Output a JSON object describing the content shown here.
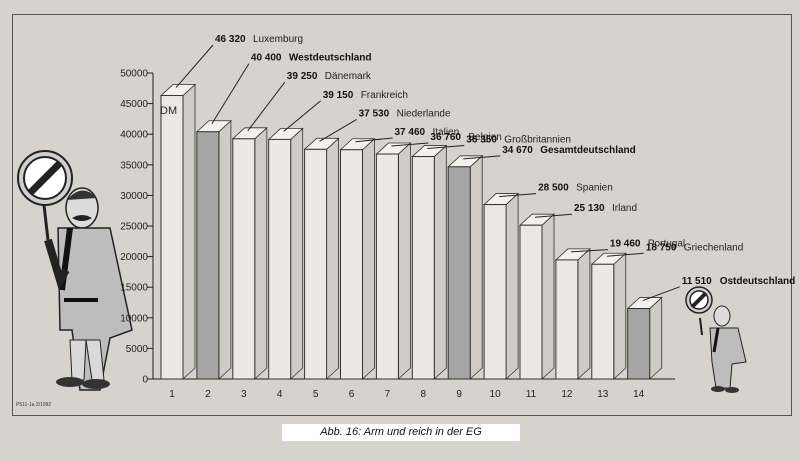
{
  "caption": "Abb. 16: Arm und reich in der EG",
  "footnote": "P511-1a 2/1992",
  "chart_data": {
    "type": "bar",
    "unit_label": "DM",
    "categories": [
      "1",
      "2",
      "3",
      "4",
      "5",
      "6",
      "7",
      "8",
      "9",
      "10",
      "11",
      "12",
      "13",
      "14"
    ],
    "values": [
      46320,
      40400,
      39250,
      39150,
      37530,
      37460,
      36760,
      36350,
      34670,
      28500,
      25130,
      19460,
      18750,
      11510
    ],
    "value_labels": [
      "46 320",
      "40 400",
      "39 250",
      "39 150",
      "37 530",
      "37 460",
      "36 760",
      "36 350",
      "34 670",
      "28 500",
      "25 130",
      "19 460",
      "18 750",
      "11 510"
    ],
    "countries": [
      "Luxemburg",
      "Westdeutschland",
      "Dänemark",
      "Frankreich",
      "Niederlande",
      "Italien",
      "Belgien",
      "Großbritannien",
      "Gesamtdeutschland",
      "Spanien",
      "Irland",
      "Portugal",
      "Griechenland",
      "Ostdeutschland"
    ],
    "bold_labels": [
      false,
      true,
      false,
      false,
      false,
      false,
      false,
      false,
      true,
      false,
      false,
      false,
      false,
      true
    ],
    "highlighted": [
      false,
      true,
      false,
      false,
      false,
      false,
      false,
      false,
      true,
      false,
      false,
      false,
      false,
      true
    ],
    "yticks": [
      0,
      5000,
      10000,
      15000,
      20000,
      25000,
      30000,
      35000,
      40000,
      45000,
      50000
    ],
    "ylim": [
      0,
      50000
    ],
    "colors": {
      "bar": "#ece9e2",
      "bar_highlight": "#a6a6a6",
      "side": "#cfccc5",
      "top": "#f3f1ec",
      "outline": "#333333"
    }
  }
}
